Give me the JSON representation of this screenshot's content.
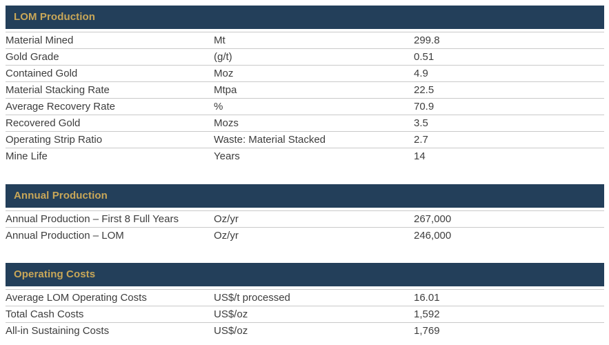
{
  "colors": {
    "header_background": "#233F5A",
    "header_text": "#C9A758",
    "row_text": "#3D3D3D",
    "row_border": "#C9C9C9",
    "page_background": "#FFFFFF"
  },
  "sections": [
    {
      "title": "LOM Production",
      "rows": [
        {
          "label": "Material Mined",
          "unit": "Mt",
          "value": "299.8"
        },
        {
          "label": "Gold Grade",
          "unit": "(g/t)",
          "value": "0.51"
        },
        {
          "label": "Contained Gold",
          "unit": "Moz",
          "value": "4.9"
        },
        {
          "label": "Material Stacking Rate",
          "unit": "Mtpa",
          "value": "22.5"
        },
        {
          "label": "Average Recovery Rate",
          "unit": "%",
          "value": "70.9"
        },
        {
          "label": "Recovered Gold",
          "unit": "Mozs",
          "value": "3.5"
        },
        {
          "label": "Operating Strip Ratio",
          "unit": "Waste: Material Stacked",
          "value": "2.7"
        },
        {
          "label": "Mine Life",
          "unit": "Years",
          "value": "14"
        }
      ]
    },
    {
      "title": "Annual Production",
      "rows": [
        {
          "label": "Annual Production – First 8 Full Years",
          "unit": "Oz/yr",
          "value": "267,000"
        },
        {
          "label": "Annual Production – LOM",
          "unit": "Oz/yr",
          "value": "246,000"
        }
      ]
    },
    {
      "title": "Operating Costs",
      "rows": [
        {
          "label": "Average LOM Operating Costs",
          "unit": "US$/t processed",
          "value": "16.01"
        },
        {
          "label": "Total Cash Costs",
          "unit": "US$/oz",
          "value": "1,592"
        },
        {
          "label": "All-in Sustaining Costs",
          "unit": "US$/oz",
          "value": "1,769"
        }
      ]
    }
  ]
}
